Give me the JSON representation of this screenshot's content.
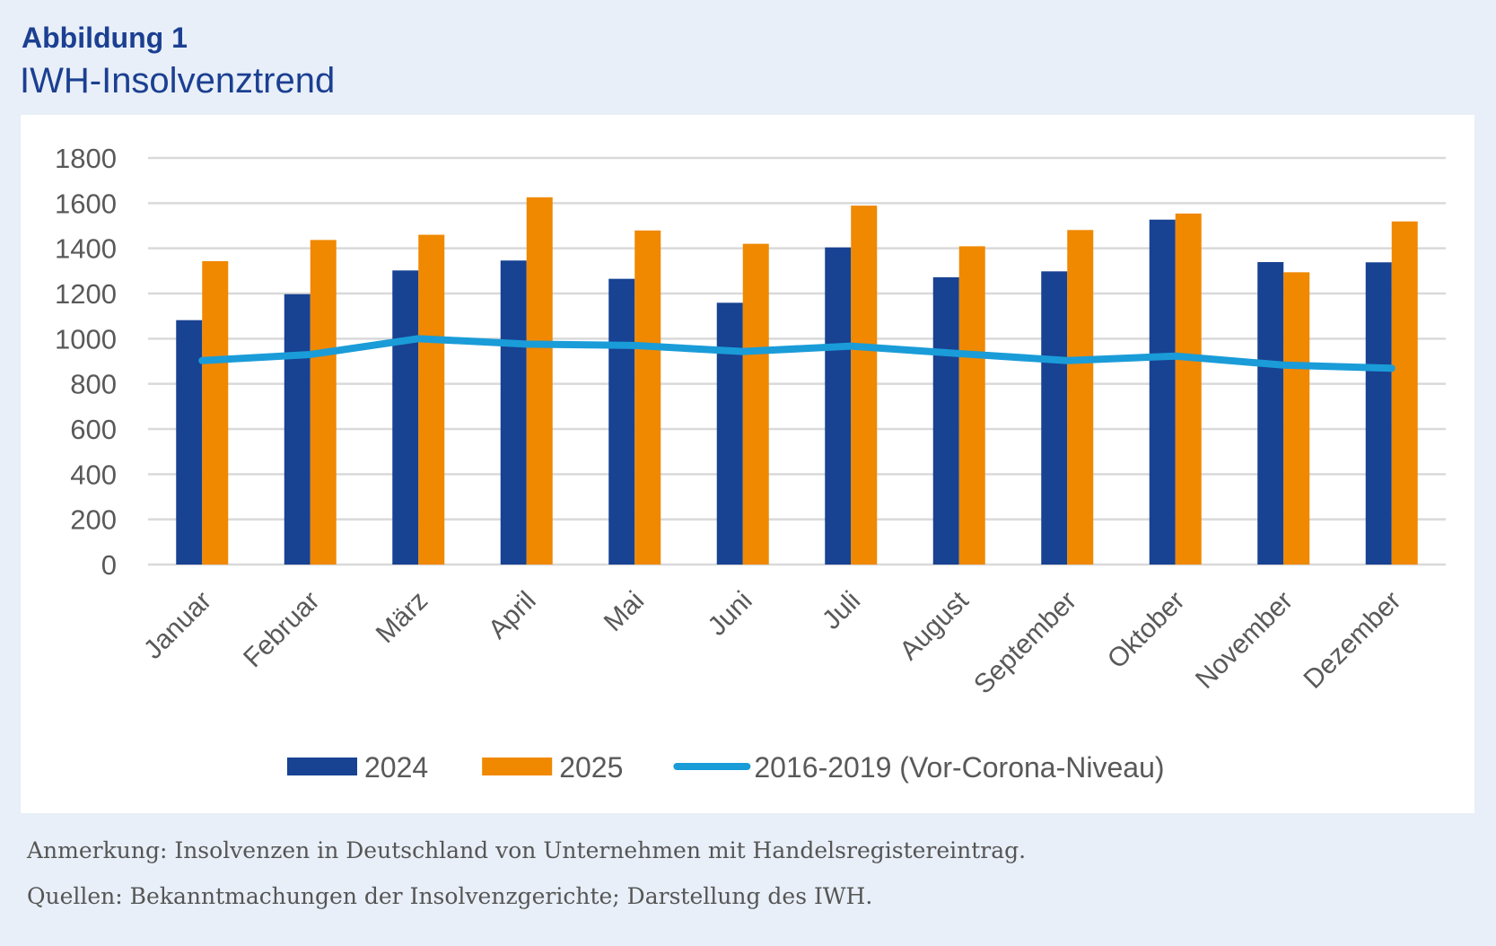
{
  "header": {
    "label": "Abbildung 1",
    "title": "IWH-Insolvenztrend"
  },
  "chart_data": {
    "type": "bar",
    "title": "IWH-Insolvenztrend",
    "categories": [
      "Januar",
      "Februar",
      "März",
      "April",
      "Mai",
      "Juni",
      "Juli",
      "August",
      "September",
      "Oktober",
      "November",
      "Dezember"
    ],
    "ylim": [
      0,
      1800
    ],
    "yticks": [
      0,
      200,
      400,
      600,
      800,
      1000,
      1200,
      1400,
      1600,
      1800
    ],
    "grid": true,
    "legend_position": "bottom",
    "series": [
      {
        "name": "2024",
        "kind": "bar",
        "color": "#184292",
        "values": [
          1082,
          1197,
          1302,
          1346,
          1265,
          1159,
          1404,
          1272,
          1298,
          1527,
          1339,
          1338
        ]
      },
      {
        "name": "2025",
        "kind": "bar",
        "color": "#f08800",
        "values": [
          1343,
          1437,
          1460,
          1626,
          1479,
          1420,
          1589,
          1409,
          1481,
          1554,
          1294,
          1519
        ]
      },
      {
        "name": "2016-2019 (Vor-Corona-Niveau)",
        "kind": "line",
        "color": "#1a9cd8",
        "values": [
          903,
          930,
          1000,
          976,
          970,
          943,
          967,
          934,
          903,
          923,
          883,
          869
        ]
      }
    ]
  },
  "notes": {
    "remark": "Anmerkung: Insolvenzen in Deutschland von Unternehmen mit Handelsregistereintrag.",
    "source": "Quellen: Bekanntmachungen der Insolvenzgerichte; Darstellung des IWH."
  }
}
